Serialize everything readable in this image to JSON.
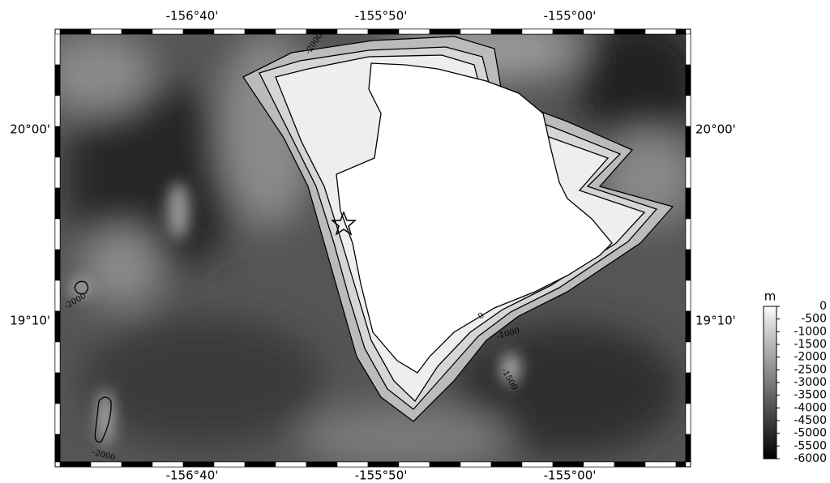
{
  "map": {
    "lon_labels": [
      "-156°40'",
      "-155°50'",
      "-155°00'"
    ],
    "lat_labels": [
      "20°00'",
      "19°10'"
    ],
    "contour_labels": [
      "-2000",
      "-2000",
      "-2000",
      "-1000",
      "-1500",
      "0"
    ],
    "colorbar": {
      "unit": "m",
      "lim": [
        0,
        -6000
      ],
      "ticks": [
        0,
        -500,
        -1000,
        -1500,
        -2000,
        -2500,
        -3000,
        -3500,
        -4000,
        -4500,
        -5000,
        -5500,
        -6000
      ]
    }
  }
}
